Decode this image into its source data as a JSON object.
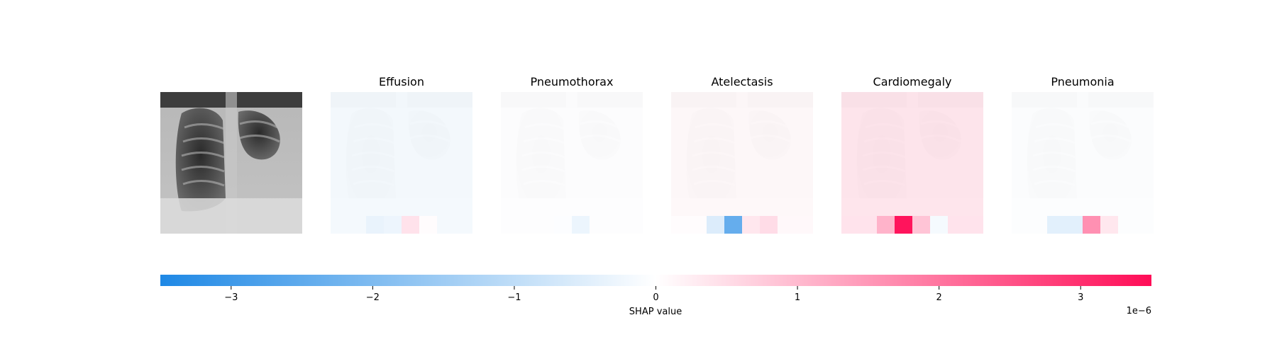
{
  "chart_data": {
    "type": "heatmap",
    "title": "",
    "input_image": {
      "description_name": "chest-xray"
    },
    "panels": [
      {
        "label": "Effusion",
        "base_tint": -0.18,
        "bottom_row_cells": [
          0,
          0,
          -0.35,
          -0.28,
          0.42,
          0.05,
          0,
          0
        ]
      },
      {
        "label": "Pneumothorax",
        "base_tint": -0.02,
        "bottom_row_cells": [
          0,
          0,
          0,
          -0.05,
          -0.3,
          0,
          0,
          0
        ]
      },
      {
        "label": "Atelectasis",
        "base_tint": 0.12,
        "bottom_row_cells": [
          0.05,
          0.05,
          -0.55,
          -2.4,
          0.35,
          0.5,
          0.1,
          0.1
        ]
      },
      {
        "label": "Cardiomegaly",
        "base_tint": 0.45,
        "bottom_row_cells": [
          0.4,
          0.4,
          1.1,
          3.4,
          0.85,
          -0.15,
          0.4,
          0.4
        ]
      },
      {
        "label": "Pneumonia",
        "base_tint": -0.03,
        "bottom_row_cells": [
          0,
          0,
          -0.45,
          -0.45,
          1.6,
          0.35,
          0,
          0
        ]
      }
    ],
    "colorbar": {
      "label": "SHAP value",
      "range": [
        -3.5,
        3.5
      ],
      "ticks": [
        -3,
        -2,
        -1,
        0,
        1,
        2,
        3
      ],
      "tick_labels": [
        "−3",
        "−2",
        "−1",
        "0",
        "1",
        "2",
        "3"
      ],
      "offset_text": "1e−6",
      "colors": {
        "negative": "#1e88e5",
        "neutral": "#ffffff",
        "positive": "#ff0d57"
      }
    }
  }
}
